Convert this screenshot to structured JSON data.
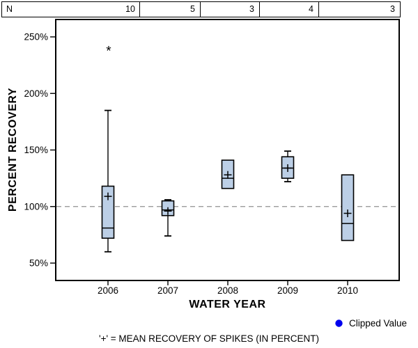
{
  "n_table": {
    "row_label": "N",
    "counts": [
      "10",
      "5",
      "3",
      "4",
      "3"
    ]
  },
  "chart_data": {
    "type": "boxplot",
    "title": "",
    "xlabel": "WATER YEAR",
    "ylabel": "PERCENT RECOVERY",
    "categories": [
      "2006",
      "2007",
      "2008",
      "2009",
      "2010"
    ],
    "n_values": [
      10,
      5,
      3,
      4,
      3
    ],
    "ylim": [
      34,
      266
    ],
    "y_tick_values": [
      250,
      200,
      150,
      100,
      50
    ],
    "y_tick_suffix": "%",
    "reference_line_value": 100,
    "grid": false,
    "legend_position": "bottom-right",
    "series": [
      {
        "category": "2006",
        "n": 10,
        "min": 60,
        "q1": 72,
        "median": 81,
        "q3": 118,
        "max": 185,
        "mean": 109,
        "outliers": [
          240
        ]
      },
      {
        "category": "2007",
        "n": 5,
        "min": 74,
        "q1": 92,
        "median": 97,
        "q3": 105,
        "max": 106,
        "mean": 96,
        "outliers": []
      },
      {
        "category": "2008",
        "n": 3,
        "min": 116,
        "q1": 116,
        "median": 125,
        "q3": 141,
        "max": 141,
        "mean": 128,
        "outliers": []
      },
      {
        "category": "2009",
        "n": 4,
        "min": 122,
        "q1": 125,
        "median": 134,
        "q3": 144,
        "max": 149,
        "mean": 134,
        "outliers": []
      },
      {
        "category": "2010",
        "n": 3,
        "min": 70,
        "q1": 70,
        "median": 85,
        "q3": 128,
        "max": 128,
        "mean": 94,
        "outliers": []
      }
    ]
  },
  "legend": {
    "marker": "circle",
    "marker_color": "#0000ee",
    "label": "Clipped Value"
  },
  "caption": "'+' = MEAN RECOVERY OF SPIKES (IN PERCENT)",
  "colors": {
    "box_fill": "#bccfe6",
    "box_stroke": "#000000",
    "reference_line": "#909090",
    "background": "#ffffff"
  }
}
